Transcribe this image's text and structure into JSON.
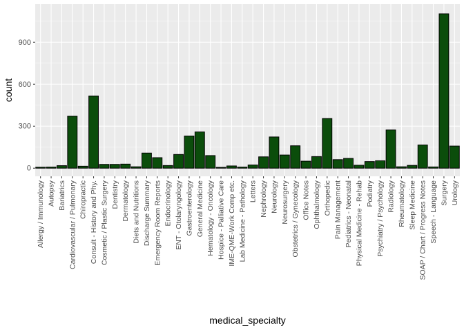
{
  "chart_data": {
    "type": "bar",
    "title": "",
    "xlabel": "medical_specialty",
    "ylabel": "count",
    "ylim": [
      -58,
      1172
    ],
    "yticks": [
      0,
      300,
      600,
      900
    ],
    "ytick_labels": [
      "0",
      "300",
      "600",
      "900"
    ],
    "grid": true,
    "legend": "none",
    "bar_fill": "#0b4d0b",
    "bar_stroke": "#000000",
    "panel_background": "#ebebeb",
    "grid_color": "#ffffff",
    "categories": [
      "Allergy / Immunology",
      "Autopsy",
      "Bariatrics",
      "Cardiovascular / Pulmonary",
      "Chiropractic",
      "Consult - History and Phy.",
      "Cosmetic / Plastic Surgery",
      "Dentistry",
      "Dermatology",
      "Diets and Nutritions",
      "Discharge Summary",
      "Emergency Room Reports",
      "Endocrinology",
      "ENT - Otolaryngology",
      "Gastroenterology",
      "General Medicine",
      "Hematology - Oncology",
      "Hospice - Palliative Care",
      "IME-QME-Work Comp etc.",
      "Lab Medicine - Pathology",
      "Letters",
      "Nephrology",
      "Neurology",
      "Neurosurgery",
      "Obstetrics / Gynecology",
      "Office Notes",
      "Ophthalmology",
      "Orthopedic",
      "Pain Management",
      "Pediatrics - Neonatal",
      "Physical Medicine - Rehab",
      "Podiatry",
      "Psychiatry / Psychology",
      "Radiology",
      "Rheumatology",
      "Sleep Medicine",
      "SOAP / Chart / Progress Notes",
      "Speech - Language",
      "Surgery",
      "Urology"
    ],
    "values": [
      7,
      8,
      18,
      372,
      14,
      516,
      27,
      27,
      29,
      10,
      108,
      75,
      19,
      98,
      230,
      259,
      90,
      6,
      16,
      8,
      23,
      81,
      223,
      94,
      160,
      50,
      83,
      355,
      61,
      70,
      21,
      47,
      53,
      273,
      10,
      20,
      166,
      9,
      1103,
      158
    ]
  }
}
